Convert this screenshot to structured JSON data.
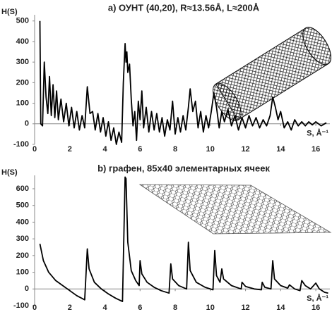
{
  "chart_data": [
    {
      "type": "line",
      "title": "a) ОУНТ (40,20), R≈13.56Å, L≈200Å",
      "ylabel": "H(S)",
      "xlabel": "S, Å⁻¹",
      "color": "#000000",
      "xlim": [
        0,
        16.8
      ],
      "ylim": [
        -100,
        530
      ],
      "xticks": [
        0,
        2,
        4,
        6,
        8,
        10,
        12,
        14,
        16
      ],
      "yticks": [
        -100,
        0,
        100,
        200,
        300,
        400,
        500
      ],
      "x": [
        0.3,
        0.35,
        0.45,
        0.55,
        0.65,
        0.75,
        0.85,
        0.95,
        1.05,
        1.15,
        1.25,
        1.35,
        1.5,
        1.65,
        1.8,
        1.95,
        2.1,
        2.25,
        2.4,
        2.55,
        2.7,
        2.85,
        3.0,
        3.15,
        3.3,
        3.45,
        3.6,
        3.75,
        3.9,
        4.05,
        4.2,
        4.35,
        4.5,
        4.65,
        4.8,
        4.95,
        5.05,
        5.15,
        5.2,
        5.25,
        5.3,
        5.4,
        5.5,
        5.6,
        5.7,
        5.8,
        5.9,
        6.0,
        6.1,
        6.2,
        6.35,
        6.5,
        6.65,
        6.8,
        6.95,
        7.1,
        7.25,
        7.4,
        7.55,
        7.7,
        7.85,
        8.0,
        8.15,
        8.3,
        8.45,
        8.6,
        8.75,
        8.85,
        9.0,
        9.15,
        9.3,
        9.45,
        9.6,
        9.75,
        9.9,
        10.05,
        10.2,
        10.35,
        10.5,
        10.65,
        10.8,
        11.0,
        11.2,
        11.4,
        11.6,
        11.8,
        12.0,
        12.2,
        12.4,
        12.6,
        12.8,
        13.0,
        13.2,
        13.4,
        13.55,
        13.7,
        13.85,
        14.0,
        14.2,
        14.4,
        14.6,
        14.8,
        15.0,
        15.2,
        15.4,
        15.6,
        15.8,
        16.0,
        16.3,
        16.6
      ],
      "values": [
        500,
        0,
        -10,
        300,
        130,
        50,
        230,
        40,
        190,
        30,
        160,
        20,
        120,
        10,
        100,
        -10,
        80,
        -20,
        60,
        -30,
        40,
        -20,
        180,
        50,
        60,
        -30,
        50,
        -40,
        30,
        -60,
        10,
        -80,
        -20,
        -100,
        -40,
        -90,
        200,
        390,
        300,
        350,
        250,
        290,
        120,
        -10,
        60,
        -80,
        110,
        20,
        160,
        -20,
        80,
        -40,
        60,
        -30,
        50,
        -40,
        30,
        -60,
        20,
        -30,
        110,
        -50,
        30,
        -40,
        40,
        -30,
        80,
        170,
        60,
        110,
        -20,
        60,
        -40,
        40,
        -20,
        60,
        150,
        80,
        -20,
        60,
        10,
        70,
        -10,
        40,
        -30,
        30,
        -20,
        40,
        -10,
        30,
        -20,
        20,
        -10,
        40,
        130,
        80,
        20,
        60,
        -20,
        10,
        -30,
        20,
        -10,
        10,
        -10,
        10,
        -5,
        10,
        -10,
        5
      ]
    },
    {
      "type": "line",
      "title": "b) графен, 85х40 элементарных ячеек",
      "ylabel": "H(S)",
      "xlabel": "S, Å⁻¹",
      "color": "#000000",
      "xlim": [
        0,
        16.8
      ],
      "ylim": [
        -100,
        680
      ],
      "xticks": [
        0,
        2,
        4,
        6,
        8,
        10,
        12,
        14,
        16
      ],
      "yticks": [
        -100,
        0,
        100,
        200,
        300,
        400,
        500,
        600
      ],
      "x": [
        0.3,
        0.5,
        0.8,
        1.2,
        1.6,
        2.0,
        2.4,
        2.85,
        3.0,
        3.1,
        3.4,
        3.8,
        4.2,
        4.6,
        5.0,
        5.15,
        5.2,
        5.3,
        5.5,
        5.75,
        5.95,
        6.0,
        6.1,
        6.4,
        6.8,
        7.2,
        7.65,
        7.75,
        7.85,
        8.2,
        8.65,
        8.75,
        8.85,
        9.2,
        9.7,
        10.15,
        10.25,
        10.35,
        10.55,
        10.65,
        10.75,
        11.2,
        11.75,
        11.8,
        12.0,
        12.5,
        12.9,
        12.95,
        13.1,
        13.45,
        13.55,
        13.65,
        14.0,
        14.4,
        14.5,
        14.8,
        15.1,
        15.2,
        15.4,
        15.7,
        16.0,
        16.2,
        16.5,
        16.7
      ],
      "values": [
        270,
        170,
        100,
        50,
        20,
        -10,
        -40,
        -65,
        240,
        120,
        40,
        0,
        -30,
        -55,
        -75,
        670,
        660,
        280,
        110,
        50,
        20,
        170,
        90,
        40,
        10,
        -10,
        -25,
        150,
        60,
        20,
        0,
        280,
        110,
        40,
        10,
        -5,
        230,
        80,
        40,
        120,
        60,
        20,
        0,
        40,
        15,
        0,
        -5,
        40,
        10,
        0,
        170,
        60,
        20,
        5,
        25,
        0,
        -10,
        50,
        20,
        0,
        35,
        0,
        -20,
        -25
      ]
    }
  ]
}
